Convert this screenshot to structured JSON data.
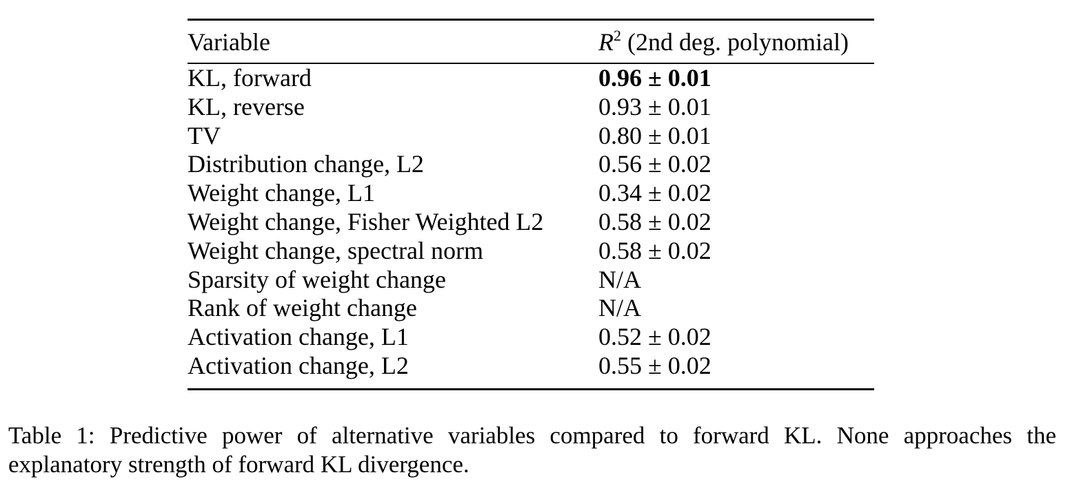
{
  "table": {
    "header": {
      "variable": "Variable",
      "r_symbol": "R",
      "r_exponent": "2",
      "r_label": " (2nd deg. polynomial)"
    },
    "rows": [
      {
        "variable": "KL, forward",
        "r2": "0.96 ± 0.01",
        "bold": true
      },
      {
        "variable": "KL, reverse",
        "r2": "0.93 ± 0.01"
      },
      {
        "variable": "TV",
        "r2": "0.80 ± 0.01"
      },
      {
        "variable": "Distribution change, L2",
        "r2": "0.56 ± 0.02"
      },
      {
        "variable": "Weight change, L1",
        "r2": "0.34 ± 0.02"
      },
      {
        "variable": "Weight change, Fisher Weighted L2",
        "r2": "0.58 ± 0.02"
      },
      {
        "variable": "Weight change, spectral norm",
        "r2": "0.58 ± 0.02"
      },
      {
        "variable": "Sparsity of weight change",
        "r2": "N/A"
      },
      {
        "variable": "Rank of weight change",
        "r2": "N/A"
      },
      {
        "variable": "Activation change, L1",
        "r2": "0.52 ± 0.02"
      },
      {
        "variable": "Activation change, L2",
        "r2": "0.55 ± 0.02"
      }
    ]
  },
  "caption": "Table 1: Predictive power of alternative variables compared to forward KL. None approaches the explanatory strength of forward KL divergence."
}
